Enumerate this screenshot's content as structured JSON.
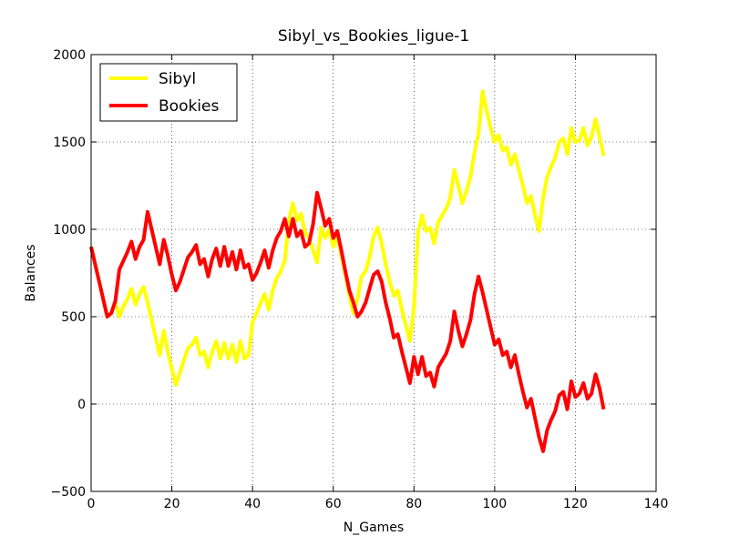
{
  "chart_data": {
    "type": "line",
    "title": "Sibyl_vs_Bookies_ligue-1",
    "x_label": "N_Games",
    "y_label": "Balances",
    "x": [
      0,
      1,
      2,
      3,
      4,
      5,
      6,
      7,
      8,
      9,
      10,
      11,
      12,
      13,
      14,
      15,
      16,
      17,
      18,
      19,
      20,
      21,
      22,
      23,
      24,
      25,
      26,
      27,
      28,
      29,
      30,
      31,
      32,
      33,
      34,
      35,
      36,
      37,
      38,
      39,
      40,
      41,
      42,
      43,
      44,
      45,
      46,
      47,
      48,
      49,
      50,
      51,
      52,
      53,
      54,
      55,
      56,
      57,
      58,
      59,
      60,
      61,
      62,
      63,
      64,
      65,
      66,
      67,
      68,
      69,
      70,
      71,
      72,
      73,
      74,
      75,
      76,
      77,
      78,
      79,
      80,
      81,
      82,
      83,
      84,
      85,
      86,
      87,
      88,
      89,
      90,
      91,
      92,
      93,
      94,
      95,
      96,
      97,
      98,
      99,
      100,
      101,
      102,
      103,
      104,
      105,
      106,
      107,
      108,
      109,
      110,
      111,
      112,
      113,
      114,
      115,
      116,
      117,
      118,
      119,
      120,
      121,
      122,
      123,
      124,
      125,
      126,
      127
    ],
    "series": [
      {
        "name": "Sibyl",
        "color": "#ffff00",
        "values": [
          900,
          800,
          700,
          600,
          500,
          520,
          580,
          500,
          560,
          600,
          660,
          570,
          630,
          670,
          580,
          480,
          380,
          280,
          420,
          300,
          200,
          110,
          180,
          250,
          320,
          340,
          380,
          280,
          300,
          210,
          300,
          360,
          260,
          350,
          260,
          340,
          240,
          360,
          260,
          280,
          470,
          520,
          580,
          630,
          540,
          650,
          720,
          760,
          820,
          1050,
          1150,
          1050,
          1090,
          980,
          950,
          880,
          810,
          1010,
          950,
          1000,
          900,
          960,
          850,
          740,
          620,
          520,
          600,
          730,
          760,
          840,
          960,
          1010,
          920,
          800,
          700,
          620,
          650,
          540,
          450,
          360,
          550,
          980,
          1080,
          990,
          1010,
          920,
          1040,
          1080,
          1120,
          1180,
          1340,
          1250,
          1150,
          1220,
          1300,
          1440,
          1550,
          1790,
          1680,
          1580,
          1500,
          1540,
          1450,
          1470,
          1370,
          1430,
          1340,
          1250,
          1150,
          1190,
          1080,
          990,
          1180,
          1300,
          1360,
          1410,
          1500,
          1520,
          1430,
          1580,
          1500,
          1510,
          1580,
          1480,
          1530,
          1630,
          1530,
          1420
        ]
      },
      {
        "name": "Bookies",
        "color": "#ff0000",
        "values": [
          900,
          800,
          700,
          600,
          500,
          520,
          590,
          770,
          820,
          870,
          930,
          830,
          900,
          940,
          1100,
          1000,
          900,
          800,
          940,
          850,
          740,
          650,
          700,
          770,
          840,
          870,
          910,
          800,
          830,
          730,
          830,
          890,
          790,
          900,
          790,
          870,
          770,
          880,
          780,
          800,
          710,
          750,
          810,
          880,
          780,
          880,
          950,
          990,
          1060,
          960,
          1060,
          960,
          990,
          900,
          920,
          1030,
          1210,
          1120,
          1020,
          1060,
          950,
          990,
          880,
          760,
          650,
          580,
          500,
          530,
          580,
          660,
          740,
          760,
          700,
          580,
          490,
          380,
          400,
          300,
          210,
          120,
          270,
          170,
          270,
          160,
          180,
          100,
          210,
          250,
          290,
          360,
          530,
          420,
          330,
          400,
          480,
          630,
          730,
          640,
          540,
          440,
          340,
          370,
          280,
          300,
          210,
          280,
          170,
          70,
          -20,
          30,
          -80,
          -190,
          -270,
          -150,
          -90,
          -40,
          50,
          70,
          -30,
          130,
          40,
          60,
          120,
          30,
          60,
          170,
          90,
          -30
        ]
      }
    ],
    "xlim": [
      0,
      140
    ],
    "xticks": [
      0,
      20,
      40,
      60,
      80,
      100,
      120,
      140
    ],
    "ylim": [
      -500,
      2000
    ],
    "yticks": [
      {
        "value": -500,
        "label": "−500"
      },
      0,
      500,
      1000,
      1500,
      2000
    ],
    "grid": true,
    "legend": "upper left"
  }
}
